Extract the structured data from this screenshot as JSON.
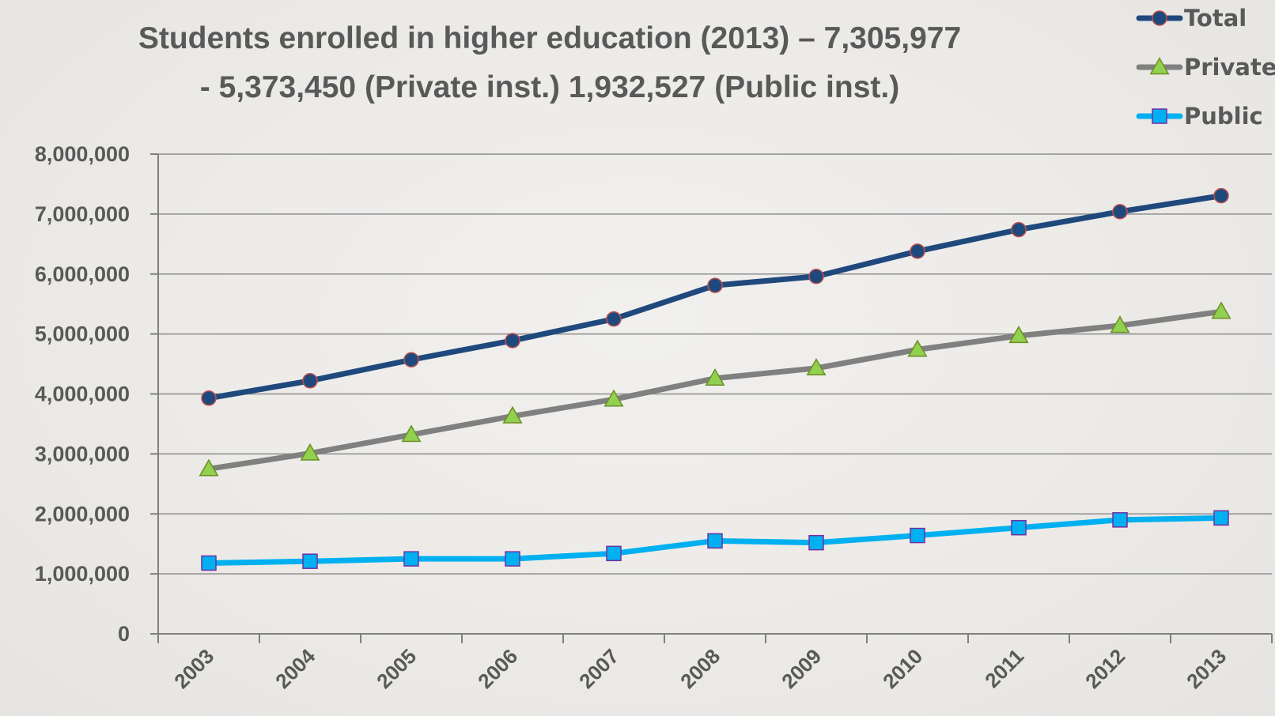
{
  "chart_data": {
    "type": "line",
    "title": "Students enrolled in higher education (2013) – 7,305,977",
    "subtitle": "- 5,373,450 (Private inst.) 1,932,527 (Public inst.)",
    "xlabel": "",
    "ylabel": "",
    "x": [
      "2003",
      "2004",
      "2005",
      "2006",
      "2007",
      "2008",
      "2009",
      "2010",
      "2011",
      "2012",
      "2013"
    ],
    "ylim": [
      0,
      8000000
    ],
    "yticks": [
      0,
      1000000,
      2000000,
      3000000,
      4000000,
      5000000,
      6000000,
      7000000,
      8000000
    ],
    "ytick_labels": [
      "0",
      "1,000,000",
      "2,000,000",
      "3,000,000",
      "4,000,000",
      "5,000,000",
      "6,000,000",
      "7,000,000",
      "8,000,000"
    ],
    "grid": true,
    "legend_position": "top-right",
    "series": [
      {
        "name": "Total",
        "color": "#1f497d",
        "marker": "circle",
        "values": [
          3930000,
          4220000,
          4570000,
          4890000,
          5250000,
          5810000,
          5960000,
          6380000,
          6740000,
          7040000,
          7305977
        ]
      },
      {
        "name": "Private",
        "color": "#808080",
        "marker": "triangle",
        "values": [
          2750000,
          3010000,
          3320000,
          3630000,
          3910000,
          4260000,
          4430000,
          4740000,
          4970000,
          5140000,
          5373450
        ]
      },
      {
        "name": "Public",
        "color": "#00b0f0",
        "marker": "square",
        "values": [
          1180000,
          1210000,
          1250000,
          1250000,
          1340000,
          1550000,
          1520000,
          1640000,
          1770000,
          1900000,
          1932527
        ]
      }
    ]
  }
}
